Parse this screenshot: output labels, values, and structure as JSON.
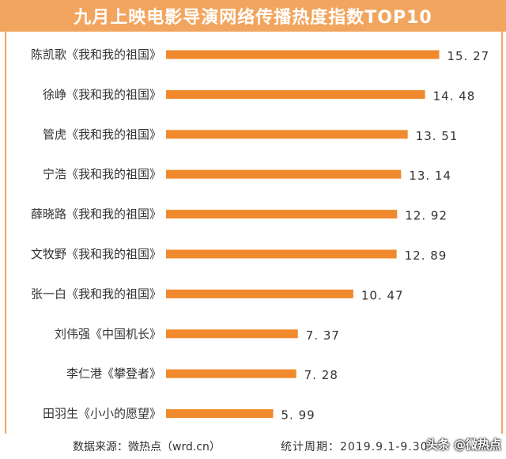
{
  "chart_data": {
    "type": "bar",
    "orientation": "horizontal",
    "title": "九月上映电影导演网络传播热度指数TOP10",
    "categories": [
      "陈凯歌《我和我的祖国》",
      "徐峥《我和我的祖国》",
      "管虎《我和我的祖国》",
      "宁浩《我和我的祖国》",
      "薛晓路《我和我的祖国》",
      "文牧野《我和我的祖国》",
      "张一白《我和我的祖国》",
      "刘伟强《中国机长》",
      "李仁港《攀登者》",
      "田羽生《小小的愿望》"
    ],
    "values": [
      15.27,
      14.48,
      13.51,
      13.14,
      12.92,
      12.89,
      10.47,
      7.37,
      7.28,
      5.99
    ],
    "value_labels": [
      "15. 27",
      "14. 48",
      "13. 51",
      "13. 14",
      "12. 92",
      "12. 89",
      "10. 47",
      "7. 37",
      "7. 28",
      "5. 99"
    ],
    "xlim": [
      0,
      16.0
    ],
    "bar_color": "#f08a2c",
    "grid": false
  },
  "footer": {
    "source": "数据来源：微热点（wrd.cn）",
    "period": "统计周期：2019.9.1-9.30"
  },
  "watermark": "头条 @微热点",
  "colors": {
    "title_bg": "#f2a55e",
    "frame": "#f2a55e"
  }
}
